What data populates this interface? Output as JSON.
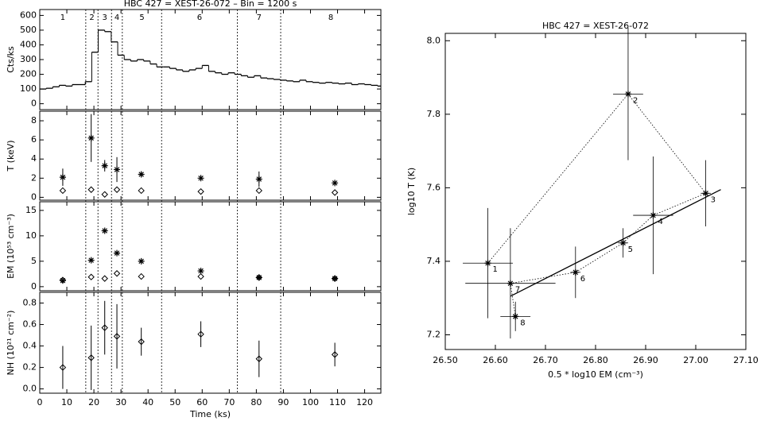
{
  "chart_data": [
    {
      "type": "step",
      "title": "HBC 427 = XEST-26-072  –  Bin = 1200 s",
      "ylabel": "Cts/ks",
      "x": [
        0,
        2.4,
        4.8,
        7.2,
        9.6,
        12,
        14.4,
        16.8,
        19.2,
        21.6,
        24,
        26.4,
        28.8,
        31.2,
        33.6,
        36,
        38.4,
        40.8,
        43.2,
        45.6,
        48,
        50.4,
        52.8,
        55.2,
        57.6,
        60,
        62.4,
        64.8,
        67.2,
        69.6,
        72,
        74.4,
        76.8,
        79.2,
        81.6,
        84,
        86.4,
        88.8,
        91.2,
        93.6,
        96,
        98.4,
        100.8,
        103.2,
        105.6,
        108,
        110.4,
        112.8,
        115.2,
        117.6,
        120,
        122.4,
        124.8
      ],
      "values": [
        100,
        105,
        115,
        125,
        120,
        130,
        130,
        150,
        350,
        500,
        490,
        420,
        330,
        300,
        290,
        300,
        290,
        270,
        250,
        250,
        240,
        230,
        220,
        230,
        240,
        260,
        220,
        210,
        200,
        210,
        200,
        190,
        180,
        190,
        175,
        170,
        165,
        160,
        155,
        150,
        160,
        150,
        145,
        140,
        145,
        140,
        135,
        140,
        130,
        135,
        130,
        125,
        120
      ],
      "ylim": [
        -40,
        640
      ],
      "yticks": [
        0,
        100,
        200,
        300,
        400,
        500,
        600
      ],
      "segments": [
        17,
        21.5,
        26.5,
        30.5,
        45,
        73,
        89
      ],
      "segment_labels": [
        "1",
        "2",
        "3",
        "4",
        "5",
        "6",
        "7",
        "8"
      ]
    },
    {
      "type": "scatter",
      "ylabel": "T (keV)",
      "x": [
        8.5,
        19,
        24,
        28.5,
        37.5,
        59.5,
        81,
        109
      ],
      "series": [
        {
          "marker": "star",
          "values": [
            2.1,
            6.2,
            3.3,
            2.9,
            2.4,
            2.0,
            1.9,
            1.5
          ],
          "errors": [
            0.9,
            2.5,
            0.6,
            1.3,
            0.2,
            0.2,
            0.8,
            0.2
          ]
        },
        {
          "marker": "diamond",
          "values": [
            0.7,
            0.8,
            0.3,
            0.8,
            0.7,
            0.6,
            0.7,
            0.5
          ]
        }
      ],
      "ylim": [
        -0.3,
        9
      ],
      "yticks": [
        0,
        2,
        4,
        6,
        8
      ]
    },
    {
      "type": "scatter",
      "ylabel": "EM (10⁵³ cm⁻³)",
      "x": [
        8.5,
        19,
        24,
        28.5,
        37.5,
        59.5,
        81,
        109
      ],
      "series": [
        {
          "marker": "star",
          "values": [
            1.2,
            5.2,
            11,
            6.6,
            5.0,
            3.1,
            1.8,
            1.6
          ]
        },
        {
          "marker": "diamond",
          "values": [
            1.3,
            1.9,
            1.6,
            2.6,
            2.0,
            2.0,
            1.8,
            1.6
          ]
        }
      ],
      "ylim": [
        -0.8,
        16.7
      ],
      "yticks": [
        0,
        5,
        10,
        15
      ]
    },
    {
      "type": "scatter",
      "ylabel": "NH (10²¹ cm⁻²)",
      "xlabel": "Time (ks)",
      "x": [
        8.5,
        19,
        24,
        28.5,
        37.5,
        59.5,
        81,
        109
      ],
      "series": [
        {
          "marker": "diamond",
          "values": [
            0.2,
            0.29,
            0.57,
            0.49,
            0.44,
            0.51,
            0.28,
            0.32
          ],
          "errors": [
            0.2,
            0.3,
            0.25,
            0.3,
            0.13,
            0.12,
            0.17,
            0.11
          ]
        }
      ],
      "xlim": [
        0,
        126
      ],
      "xticks": [
        0,
        10,
        20,
        30,
        40,
        50,
        60,
        70,
        80,
        90,
        100,
        110,
        120
      ],
      "ylim": [
        -0.04,
        0.9
      ],
      "yticks": [
        {
          "value": 0,
          "label": "0.0"
        },
        0.2,
        0.4,
        0.6,
        0.8
      ]
    },
    {
      "type": "trajectory",
      "title": "HBC 427 = XEST-26-072",
      "xlabel": "0.5 * log10 EM (cm⁻³)",
      "ylabel": "log10 T (K)",
      "x": [
        26.585,
        26.865,
        27.02,
        26.915,
        26.855,
        26.76,
        26.63,
        26.64
      ],
      "y": [
        7.395,
        7.855,
        7.585,
        7.525,
        7.45,
        7.37,
        7.34,
        7.25
      ],
      "xerr": [
        0.05,
        0.03,
        0.01,
        0.04,
        0.01,
        0.01,
        0.09,
        0.03
      ],
      "yerr": [
        0.15,
        0.18,
        0.09,
        0.16,
        0.04,
        0.07,
        0.15,
        0.04
      ],
      "labels": [
        "1",
        "2",
        "3",
        "4",
        "5",
        "6",
        "7",
        "8"
      ],
      "fit": {
        "x": [
          26.63,
          27.05
        ],
        "y": [
          7.305,
          7.595
        ]
      },
      "xlim": [
        26.5,
        27.1
      ],
      "xticks": [
        {
          "value": 26.5,
          "label": "26.50"
        },
        {
          "value": 26.6,
          "label": "26.60"
        },
        {
          "value": 26.7,
          "label": "26.70"
        },
        {
          "value": 26.8,
          "label": "26.80"
        },
        {
          "value": 26.9,
          "label": "26.90"
        },
        {
          "value": 27.0,
          "label": "27.00"
        },
        {
          "value": 27.1,
          "label": "27.10"
        }
      ],
      "ylim": [
        7.16,
        8.02
      ],
      "yticks": [
        7.2,
        7.4,
        7.6,
        7.8,
        {
          "value": 8,
          "label": "8.0"
        }
      ]
    }
  ]
}
